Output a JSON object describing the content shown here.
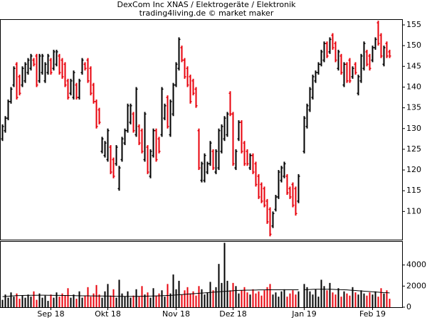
{
  "chart_data": {
    "type": "ohlc",
    "title": "DexCom Inc XNAS / Elektrogeräte / Elektronik",
    "subtitle": "trading4living.de © market maker",
    "up_color": "#000000",
    "down_color": "#e8000b",
    "volume_ma_color": "#000000",
    "categories": [
      null,
      null,
      null,
      null,
      null,
      null,
      null,
      null,
      null,
      null,
      null,
      null,
      null,
      null,
      null,
      null,
      null,
      "Sep 18",
      null,
      null,
      null,
      null,
      null,
      null,
      null,
      null,
      null,
      null,
      null,
      null,
      null,
      null,
      null,
      null,
      null,
      null,
      null,
      "Okt 18",
      null,
      null,
      null,
      null,
      null,
      null,
      null,
      null,
      null,
      null,
      null,
      null,
      null,
      null,
      null,
      null,
      null,
      null,
      null,
      null,
      null,
      null,
      null,
      "Nov 18",
      null,
      null,
      null,
      null,
      null,
      null,
      null,
      null,
      null,
      null,
      null,
      null,
      null,
      null,
      null,
      null,
      null,
      null,
      null,
      "Dez 18",
      null,
      null,
      null,
      null,
      null,
      null,
      null,
      null,
      null,
      null,
      null,
      null,
      null,
      null,
      null,
      null,
      null,
      null,
      null,
      null,
      null,
      null,
      null,
      null,
      "Jan 19",
      null,
      null,
      null,
      null,
      null,
      null,
      null,
      null,
      null,
      null,
      null,
      null,
      null,
      null,
      null,
      null,
      null,
      null,
      null,
      null,
      null,
      null,
      null,
      "Feb 19",
      null,
      null,
      null,
      null,
      null,
      null
    ],
    "open": [
      127.5,
      129.5,
      132.5,
      136.5,
      140.5,
      145.5,
      142.5,
      140.5,
      141.5,
      143.5,
      144.5,
      146.5,
      147.5,
      141.5,
      143.5,
      141.5,
      143.5,
      146.5,
      144.5,
      145.5,
      147.5,
      146.5,
      145.5,
      141.5,
      138.5,
      137.5,
      140.5,
      137.5,
      143.5,
      145.5,
      146.5,
      144.5,
      140.5,
      136.5,
      134.5,
      124.5,
      123.5,
      122.5,
      125.5,
      122.5,
      121.5,
      115.5,
      122.5,
      126.5,
      129.5,
      131.5,
      133.5,
      128.5,
      130.5,
      129.5,
      122.5,
      125.5,
      118.5,
      123.5,
      129.5,
      127.5,
      128.5,
      132.5,
      137.5,
      128.5,
      133.5,
      140.5,
      144.5,
      149.5,
      146.5,
      144.5,
      142.5,
      141.5,
      139.5,
      129.5,
      117.5,
      117.5,
      119.5,
      121.5,
      124.5,
      119.5,
      120.5,
      124.5,
      127.5,
      128.5,
      138.5,
      133.5,
      120.5,
      127.5,
      131.5,
      126.5,
      124.5,
      120.5,
      123.5,
      121.5,
      118.5,
      116.5,
      115.5,
      112.5,
      110.5,
      106.5,
      110.5,
      113.5,
      117.5,
      118.5,
      118.5,
      115.5,
      116.5,
      115.5,
      112.5,
      null,
      124.5,
      130.5,
      134.5,
      137.5,
      141.5,
      143.5,
      145.5,
      146.5,
      150.5,
      148.5,
      152.5,
      150.5,
      144.5,
      147.5,
      140.5,
      145.5,
      146.5,
      142.5,
      145.5,
      138.5,
      141.5,
      144.5,
      148.5,
      147.5,
      146.5,
      149.5,
      155.5,
      152.5,
      145.5,
      150.5,
      148.5
    ],
    "high": [
      131,
      133,
      137,
      140,
      145,
      146,
      143,
      145,
      146,
      147,
      148,
      147,
      148,
      148,
      148,
      146,
      148,
      147,
      149,
      149,
      148,
      147,
      146,
      142,
      142,
      144,
      141,
      142,
      147,
      146,
      147,
      145,
      141,
      137,
      135,
      128,
      127,
      130,
      126,
      123,
      126,
      121,
      128,
      130,
      136,
      136,
      134,
      140,
      131,
      130,
      134,
      126,
      125,
      130,
      130,
      128,
      140,
      136,
      138,
      137,
      141,
      146,
      152,
      150,
      147,
      145,
      143,
      142,
      140,
      130,
      122,
      124,
      122,
      127,
      125,
      125,
      130,
      131,
      133,
      134,
      139,
      134,
      125,
      132,
      132,
      127,
      125,
      124,
      124,
      122,
      119,
      117,
      116,
      113,
      111,
      110,
      114,
      120,
      121,
      122,
      119,
      116,
      117,
      116,
      119,
      null,
      133,
      136,
      140,
      143,
      144,
      146,
      149,
      151,
      151,
      152,
      153,
      151,
      149,
      148,
      146,
      146,
      147,
      145,
      146,
      143,
      148,
      151,
      149,
      148,
      150,
      152,
      156,
      153,
      150,
      151,
      149
    ],
    "low": [
      127,
      129,
      132,
      136,
      140,
      137,
      138,
      140,
      141,
      143,
      144,
      145,
      140,
      141,
      143,
      141,
      143,
      143,
      144,
      145,
      143,
      142,
      140,
      137,
      138,
      137,
      137,
      137,
      143,
      144,
      141,
      138,
      136,
      130,
      131,
      124,
      123,
      122,
      119,
      118,
      121,
      115,
      122,
      126,
      129,
      131,
      129,
      128,
      126,
      124,
      122,
      119,
      118,
      123,
      122,
      124,
      128,
      132,
      130,
      128,
      133,
      140,
      144,
      146,
      142,
      140,
      136,
      138,
      135,
      120,
      117,
      117,
      119,
      121,
      120,
      119,
      120,
      124,
      127,
      128,
      133,
      121,
      120,
      127,
      124,
      121,
      121,
      120,
      119,
      116,
      113,
      112,
      111,
      107,
      104,
      106,
      110,
      113,
      117,
      118,
      114,
      113,
      111,
      109,
      112,
      null,
      124,
      130,
      134,
      137,
      141,
      143,
      145,
      146,
      147,
      148,
      149,
      146,
      144,
      143,
      140,
      141,
      141,
      142,
      143,
      138,
      141,
      144,
      145,
      144,
      146,
      149,
      150,
      147,
      145,
      147,
      147
    ],
    "close": [
      130.5,
      132.5,
      136.5,
      139.5,
      144.5,
      137.5,
      138.5,
      144.5,
      145.5,
      146.5,
      147.5,
      145.5,
      140.5,
      147.5,
      147.5,
      145.5,
      147.5,
      143.5,
      148.5,
      148.5,
      143.5,
      142.5,
      140.5,
      137.5,
      141.5,
      143.5,
      137.5,
      141.5,
      146.5,
      144.5,
      141.5,
      138.5,
      136.5,
      130.5,
      131.5,
      127.5,
      126.5,
      129.5,
      119.5,
      118.5,
      125.5,
      120.5,
      127.5,
      129.5,
      135.5,
      135.5,
      129.5,
      139.5,
      126.5,
      124.5,
      133.5,
      119.5,
      124.5,
      129.5,
      122.5,
      124.5,
      139.5,
      135.5,
      130.5,
      136.5,
      140.5,
      145.5,
      151.5,
      146.5,
      142.5,
      140.5,
      136.5,
      138.5,
      135.5,
      120.5,
      121.5,
      123.5,
      121.5,
      126.5,
      120.5,
      124.5,
      129.5,
      130.5,
      132.5,
      133.5,
      133.5,
      121.5,
      124.5,
      131.5,
      124.5,
      121.5,
      121.5,
      123.5,
      119.5,
      116.5,
      113.5,
      112.5,
      111.5,
      107.5,
      104.5,
      109.5,
      113.5,
      119.5,
      120.5,
      121.5,
      114.5,
      113.5,
      111.5,
      109.5,
      118.5,
      null,
      132.5,
      135.5,
      139.5,
      142.5,
      143.5,
      145.5,
      148.5,
      150.5,
      147.5,
      151.5,
      149.5,
      146.5,
      148.5,
      143.5,
      145.5,
      141.5,
      141.5,
      144.5,
      143.5,
      142.5,
      147.5,
      150.5,
      145.5,
      144.5,
      149.5,
      151.5,
      150.5,
      147.5,
      149.5,
      147.5,
      147.5
    ],
    "volume": [
      700,
      1200,
      900,
      1400,
      1000,
      1300,
      800,
      1100,
      900,
      1200,
      1000,
      1500,
      700,
      1300,
      900,
      1100,
      600,
      1200,
      900,
      1400,
      1000,
      1300,
      1100,
      1800,
      900,
      1200,
      800,
      1500,
      900,
      1100,
      1900,
      1000,
      1300,
      2100,
      1200,
      900,
      1500,
      2200,
      1100,
      1700,
      900,
      2600,
      1300,
      1000,
      1500,
      900,
      1100,
      1700,
      1000,
      2000,
      1200,
      1400,
      900,
      1800,
      1100,
      1300,
      1600,
      1000,
      2200,
      1300,
      3100,
      1700,
      2500,
      1200,
      1600,
      1900,
      1300,
      1500,
      1100,
      2000,
      1700,
      1200,
      1400,
      2400,
      1600,
      1900,
      4100,
      2300,
      6100,
      2500,
      1600,
      2300,
      2000,
      1300,
      1600,
      1900,
      1400,
      1200,
      1700,
      1300,
      1500,
      1100,
      1600,
      1900,
      2200,
      1200,
      1400,
      1000,
      1500,
      1700,
      1000,
      1300,
      1600,
      1200,
      1500,
      null,
      2200,
      1900,
      1500,
      1200,
      1700,
      1000,
      2600,
      2000,
      1600,
      2300,
      1400,
      1200,
      1800,
      1000,
      1500,
      1300,
      1100,
      1900,
      1400,
      1200,
      1600,
      1300,
      1100,
      1400,
      1200,
      1500,
      1000,
      1800,
      1300,
      1600,
      800
    ],
    "volume_ma": [
      1000,
      1020,
      1040,
      1060,
      1080,
      1100,
      1100,
      1110,
      1120,
      1120,
      1130,
      1130,
      1130,
      1140,
      1140,
      1140,
      1130,
      1130,
      1120,
      1120,
      1120,
      1110,
      1110,
      1100,
      1100,
      1100,
      1090,
      1090,
      1080,
      1080,
      1080,
      1070,
      1070,
      1060,
      1060,
      1060,
      1050,
      1050,
      1050,
      1040,
      1040,
      1040,
      1040,
      1030,
      1030,
      1030,
      1030,
      1030,
      1040,
      1040,
      1040,
      1050,
      1050,
      1060,
      1070,
      1080,
      1090,
      1100,
      1110,
      1120,
      1140,
      1160,
      1180,
      1200,
      1220,
      1240,
      1260,
      1280,
      1300,
      1320,
      1340,
      1360,
      1380,
      1400,
      1420,
      1440,
      1460,
      1480,
      1500,
      1520,
      1540,
      1560,
      1580,
      1590,
      1600,
      1610,
      1620,
      1620,
      1630,
      1630,
      1640,
      1640,
      1640,
      1650,
      1650,
      1650,
      1650,
      1650,
      1650,
      1650,
      1650,
      1650,
      1650,
      1650,
      1650,
      null,
      1660,
      1670,
      1680,
      1690,
      1700,
      1700,
      1700,
      1700,
      1700,
      1700,
      1690,
      1680,
      1670,
      1660,
      1650,
      1640,
      1620,
      1600,
      1580,
      1560,
      1540,
      1520,
      1500,
      1480,
      1460,
      1440,
      1420,
      1400,
      1380,
      1370,
      1360
    ],
    "ylim": [
      103.2,
      156.2
    ],
    "yticks": [
      110,
      115,
      120,
      125,
      130,
      135,
      140,
      145,
      150,
      155
    ],
    "volume_ylim": [
      0,
      6200
    ],
    "volume_yticks": [
      0,
      2000,
      4000
    ]
  }
}
